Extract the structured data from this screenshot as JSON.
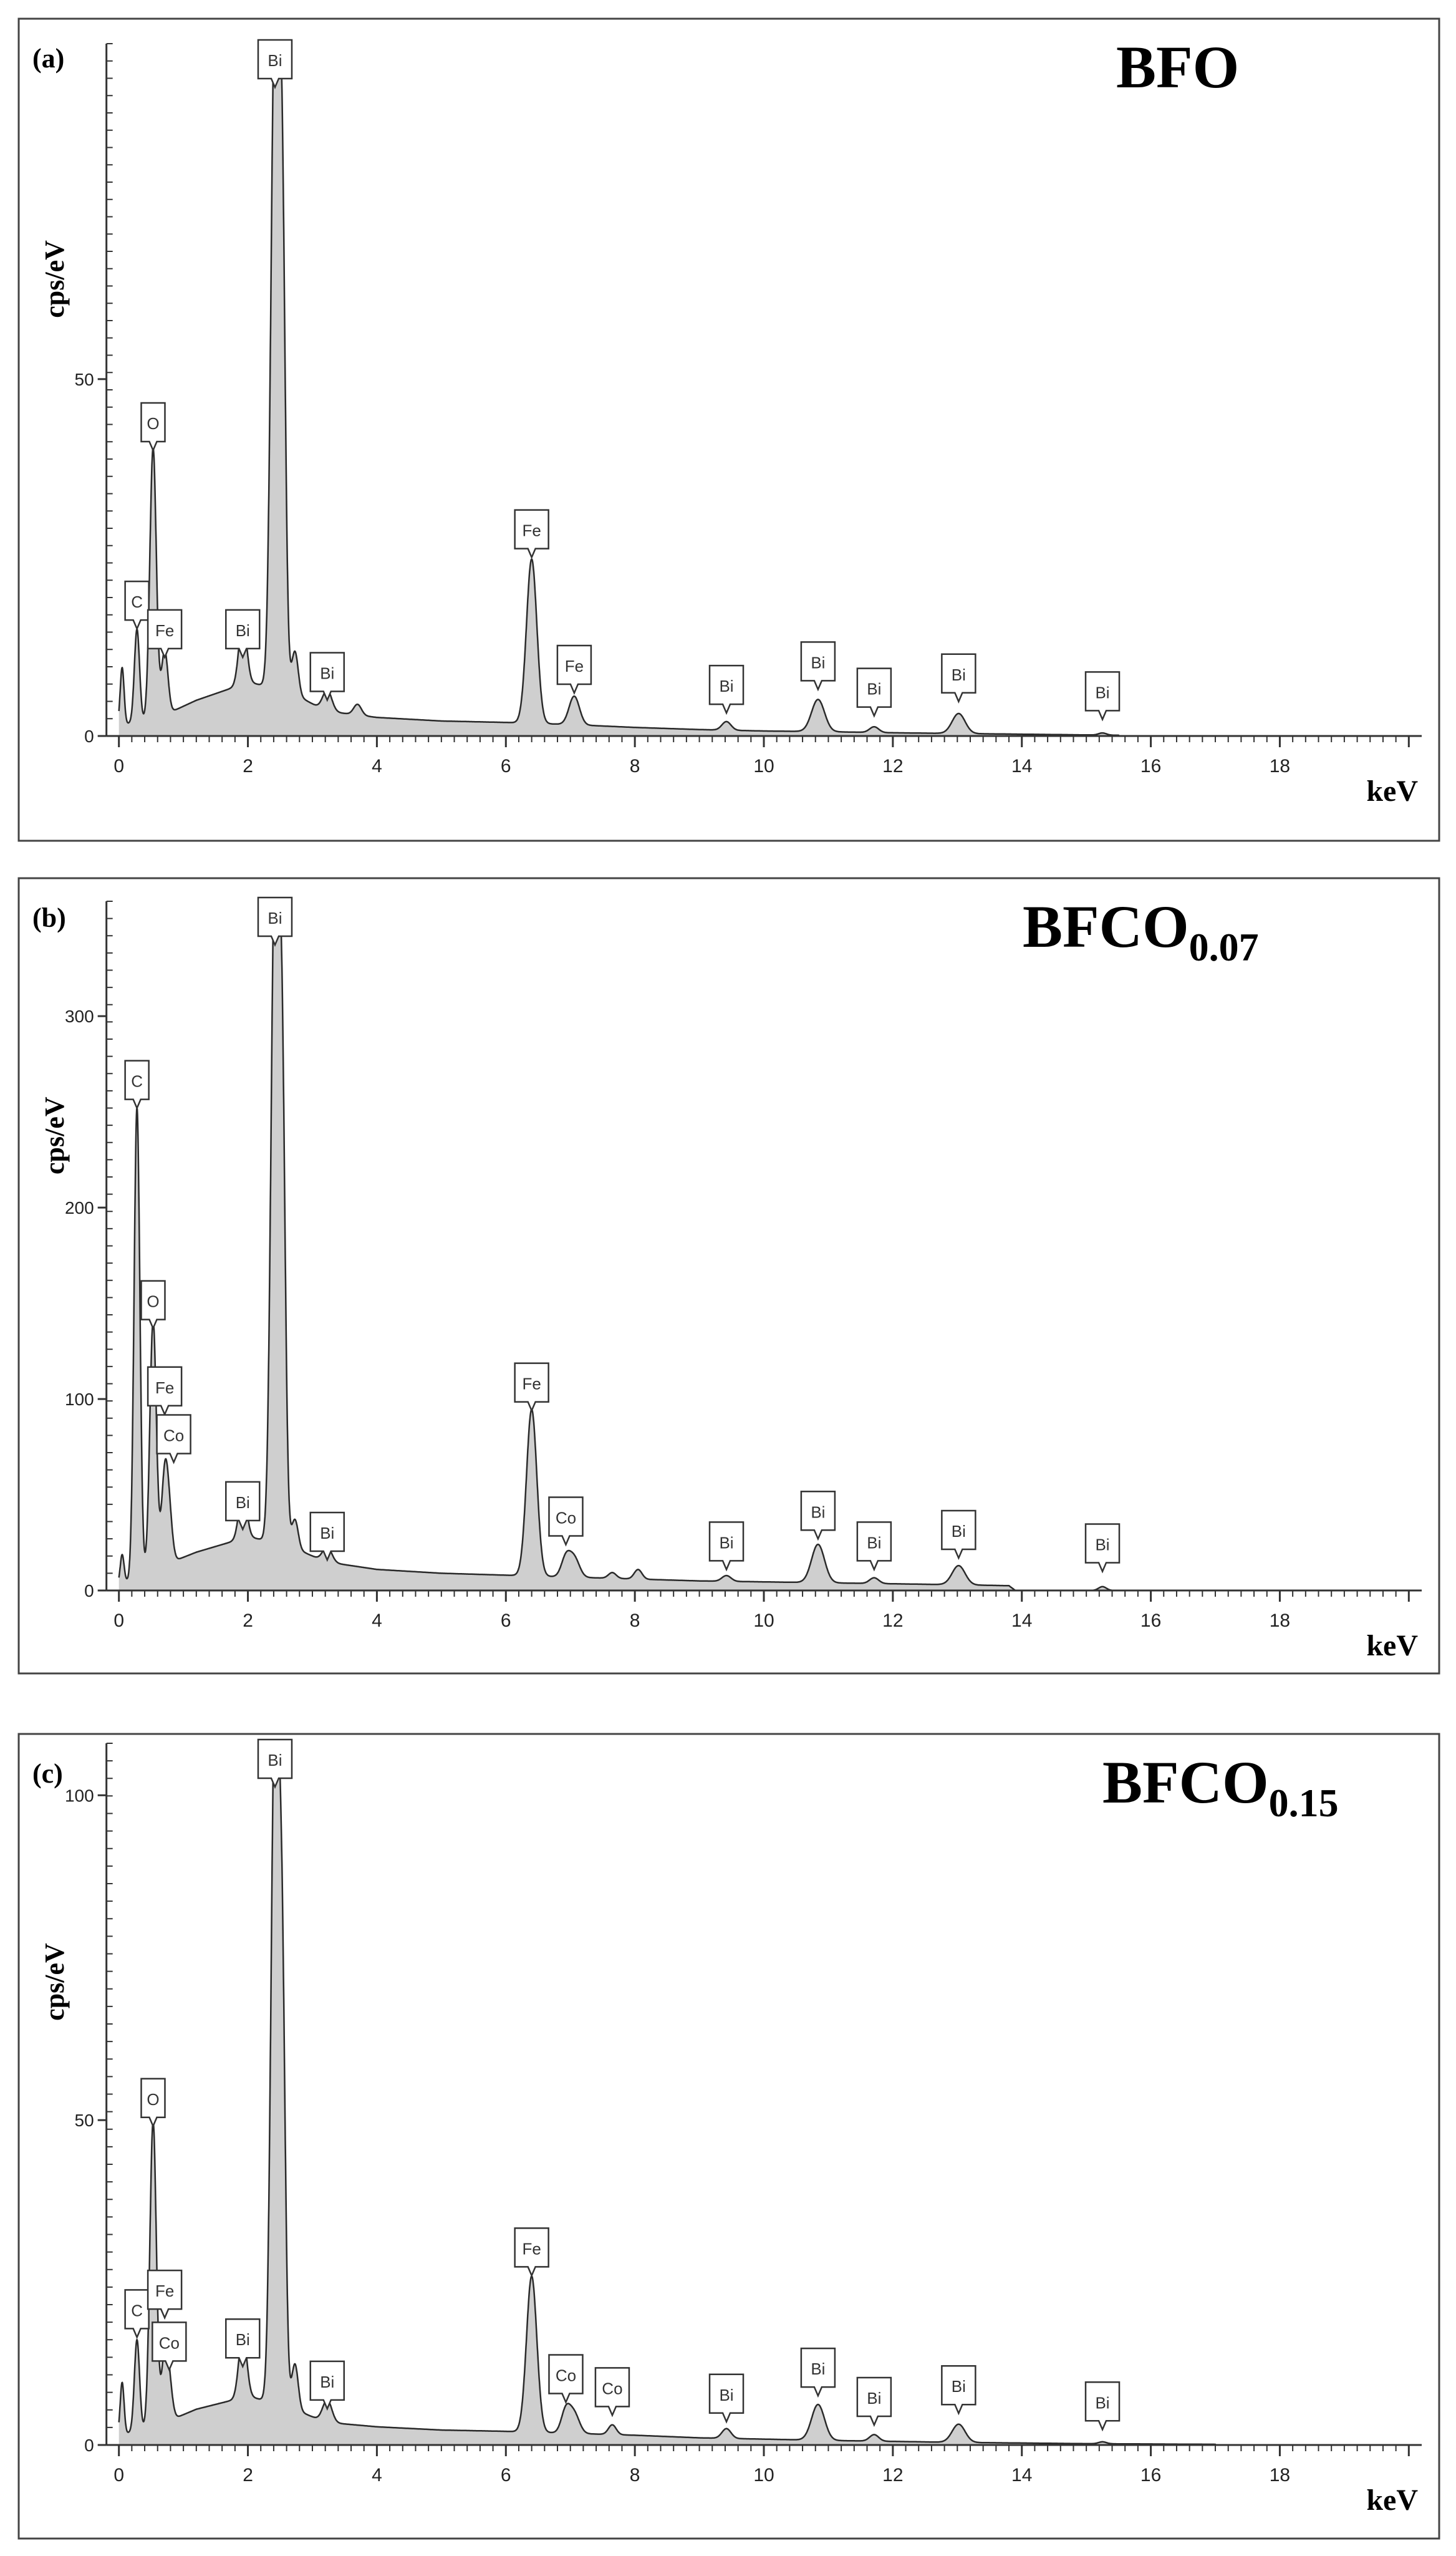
{
  "chart_data": [
    {
      "type": "area",
      "panel_label": "(a)",
      "title": "BFO",
      "title_sub": "",
      "ylabel": "cps/eV",
      "xlabel": "keV",
      "xlim": [
        -0.2,
        20.2
      ],
      "ylim": [
        0,
        97
      ],
      "x_ticks": [
        0,
        2,
        4,
        6,
        8,
        10,
        12,
        14,
        16,
        18
      ],
      "y_ticks": [
        0,
        50
      ],
      "background": [
        [
          0,
          1.5
        ],
        [
          0.6,
          2.5
        ],
        [
          1.2,
          5
        ],
        [
          2.0,
          7.5
        ],
        [
          2.6,
          6.5
        ],
        [
          3.2,
          3.5
        ],
        [
          4.0,
          2.6
        ],
        [
          5.0,
          2.1
        ],
        [
          6.0,
          1.9
        ],
        [
          7.0,
          1.6
        ],
        [
          8.0,
          1.2
        ],
        [
          9.0,
          0.9
        ],
        [
          10.0,
          0.7
        ],
        [
          11.0,
          0.6
        ],
        [
          12.0,
          0.45
        ],
        [
          13.0,
          0.35
        ],
        [
          14.0,
          0.25
        ],
        [
          15.0,
          0.15
        ],
        [
          15.5,
          0.1
        ]
      ],
      "peaks": [
        {
          "x": 0.05,
          "y": 8,
          "w": 0.03
        },
        {
          "x": 0.28,
          "y": 13,
          "w": 0.04
        },
        {
          "x": 0.53,
          "y": 38,
          "w": 0.05
        },
        {
          "x": 0.71,
          "y": 9,
          "w": 0.05
        },
        {
          "x": 1.92,
          "y": 9,
          "w": 0.06
        },
        {
          "x": 2.42,
          "y": 96,
          "w": 0.06
        },
        {
          "x": 2.53,
          "y": 65,
          "w": 0.05
        },
        {
          "x": 2.73,
          "y": 6,
          "w": 0.05
        },
        {
          "x": 3.23,
          "y": 3,
          "w": 0.07
        },
        {
          "x": 3.7,
          "y": 1.5,
          "w": 0.06
        },
        {
          "x": 6.4,
          "y": 23,
          "w": 0.08
        },
        {
          "x": 7.06,
          "y": 4,
          "w": 0.08
        },
        {
          "x": 9.42,
          "y": 1.2,
          "w": 0.07
        },
        {
          "x": 10.84,
          "y": 4.5,
          "w": 0.1
        },
        {
          "x": 11.71,
          "y": 0.8,
          "w": 0.07
        },
        {
          "x": 13.02,
          "y": 2.8,
          "w": 0.1
        },
        {
          "x": 15.25,
          "y": 0.3,
          "w": 0.06
        }
      ],
      "peak_labels": [
        {
          "text": "C",
          "x": 0.28,
          "y": 14.5
        },
        {
          "text": "O",
          "x": 0.53,
          "y": 39.5
        },
        {
          "text": "Fe",
          "x": 0.71,
          "y": 10.5
        },
        {
          "text": "Bi",
          "x": 1.92,
          "y": 10.5
        },
        {
          "text": "Bi",
          "x": 2.42,
          "y": 97.5
        },
        {
          "text": "Bi",
          "x": 3.23,
          "y": 4.5
        },
        {
          "text": "Fe",
          "x": 6.4,
          "y": 24.5
        },
        {
          "text": "Fe",
          "x": 7.06,
          "y": 5.5
        },
        {
          "text": "Bi",
          "x": 9.42,
          "y": 2.7
        },
        {
          "text": "Bi",
          "x": 10.84,
          "y": 6
        },
        {
          "text": "Bi",
          "x": 11.71,
          "y": 2.3
        },
        {
          "text": "Bi",
          "x": 13.02,
          "y": 4.3
        },
        {
          "text": "Bi",
          "x": 15.25,
          "y": 1.8
        }
      ]
    },
    {
      "type": "area",
      "panel_label": "(b)",
      "title": "BFCO",
      "title_sub": "0.07",
      "ylabel": "cps/eV",
      "xlabel": "keV",
      "xlim": [
        -0.2,
        20.2
      ],
      "ylim": [
        0,
        360
      ],
      "x_ticks": [
        0,
        2,
        4,
        6,
        8,
        10,
        12,
        14,
        16,
        18
      ],
      "y_ticks": [
        0,
        100,
        200,
        300
      ],
      "background": [
        [
          0,
          3
        ],
        [
          0.6,
          12
        ],
        [
          1.2,
          20
        ],
        [
          2.0,
          28
        ],
        [
          2.6,
          24
        ],
        [
          3.2,
          15
        ],
        [
          4.0,
          11
        ],
        [
          5.0,
          9
        ],
        [
          6.0,
          8
        ],
        [
          7.0,
          7
        ],
        [
          8.0,
          6
        ],
        [
          9.0,
          5
        ],
        [
          10.0,
          4.5
        ],
        [
          11.0,
          4
        ],
        [
          12.0,
          3.5
        ],
        [
          13.0,
          3
        ],
        [
          13.8,
          2.5
        ],
        [
          13.9,
          0
        ]
      ],
      "peaks": [
        {
          "x": 0.05,
          "y": 15,
          "w": 0.03
        },
        {
          "x": 0.28,
          "y": 245,
          "w": 0.045
        },
        {
          "x": 0.53,
          "y": 130,
          "w": 0.05
        },
        {
          "x": 0.71,
          "y": 45,
          "w": 0.05
        },
        {
          "x": 0.78,
          "y": 22,
          "w": 0.05
        },
        {
          "x": 1.92,
          "y": 25,
          "w": 0.06
        },
        {
          "x": 2.42,
          "y": 358,
          "w": 0.06
        },
        {
          "x": 2.53,
          "y": 230,
          "w": 0.05
        },
        {
          "x": 2.73,
          "y": 15,
          "w": 0.05
        },
        {
          "x": 3.23,
          "y": 8,
          "w": 0.07
        },
        {
          "x": 6.4,
          "y": 87,
          "w": 0.08
        },
        {
          "x": 6.93,
          "y": 10,
          "w": 0.07
        },
        {
          "x": 7.06,
          "y": 10,
          "w": 0.08
        },
        {
          "x": 7.65,
          "y": 3,
          "w": 0.06
        },
        {
          "x": 8.05,
          "y": 5,
          "w": 0.06
        },
        {
          "x": 9.42,
          "y": 3,
          "w": 0.07
        },
        {
          "x": 10.84,
          "y": 20,
          "w": 0.1
        },
        {
          "x": 11.71,
          "y": 3,
          "w": 0.07
        },
        {
          "x": 13.02,
          "y": 10,
          "w": 0.1
        },
        {
          "x": 15.25,
          "y": 2,
          "w": 0.06
        }
      ],
      "peak_labels": [
        {
          "text": "C",
          "x": 0.28,
          "y": 250
        },
        {
          "text": "O",
          "x": 0.53,
          "y": 135
        },
        {
          "text": "Fe",
          "x": 0.71,
          "y": 90
        },
        {
          "text": "Co",
          "x": 0.85,
          "y": 65
        },
        {
          "text": "Bi",
          "x": 1.92,
          "y": 30
        },
        {
          "text": "Bi",
          "x": 2.42,
          "y": 360
        },
        {
          "text": "Bi",
          "x": 3.23,
          "y": 14
        },
        {
          "text": "Fe",
          "x": 6.4,
          "y": 92
        },
        {
          "text": "Co",
          "x": 6.93,
          "y": 22
        },
        {
          "text": "Bi",
          "x": 9.42,
          "y": 9
        },
        {
          "text": "Bi",
          "x": 10.84,
          "y": 25
        },
        {
          "text": "Bi",
          "x": 11.71,
          "y": 9
        },
        {
          "text": "Bi",
          "x": 13.02,
          "y": 15
        },
        {
          "text": "Bi",
          "x": 15.25,
          "y": 8
        }
      ]
    },
    {
      "type": "area",
      "panel_label": "(c)",
      "title": "BFCO",
      "title_sub": "0.15",
      "ylabel": "cps/eV",
      "xlabel": "keV",
      "xlim": [
        -0.2,
        20.2
      ],
      "ylim": [
        0,
        108
      ],
      "x_ticks": [
        0,
        2,
        4,
        6,
        8,
        10,
        12,
        14,
        16,
        18
      ],
      "y_ticks": [
        0,
        50,
        100
      ],
      "background": [
        [
          0,
          1.5
        ],
        [
          0.6,
          3
        ],
        [
          1.2,
          5.5
        ],
        [
          2.0,
          7.5
        ],
        [
          2.6,
          6
        ],
        [
          3.2,
          3.5
        ],
        [
          4.0,
          2.8
        ],
        [
          5.0,
          2.3
        ],
        [
          6.0,
          2.1
        ],
        [
          7.0,
          1.8
        ],
        [
          8.0,
          1.5
        ],
        [
          9.0,
          1.1
        ],
        [
          10.0,
          0.9
        ],
        [
          11.0,
          0.7
        ],
        [
          12.0,
          0.55
        ],
        [
          13.0,
          0.4
        ],
        [
          14.0,
          0.3
        ],
        [
          15.0,
          0.2
        ],
        [
          16.0,
          0.15
        ],
        [
          17.0,
          0.1
        ]
      ],
      "peaks": [
        {
          "x": 0.05,
          "y": 8,
          "w": 0.03
        },
        {
          "x": 0.28,
          "y": 14,
          "w": 0.04
        },
        {
          "x": 0.53,
          "y": 47,
          "w": 0.05
        },
        {
          "x": 0.71,
          "y": 10,
          "w": 0.05
        },
        {
          "x": 0.78,
          "y": 5,
          "w": 0.05
        },
        {
          "x": 1.92,
          "y": 10,
          "w": 0.06
        },
        {
          "x": 2.42,
          "y": 108,
          "w": 0.06
        },
        {
          "x": 2.53,
          "y": 62,
          "w": 0.05
        },
        {
          "x": 2.73,
          "y": 7,
          "w": 0.05
        },
        {
          "x": 3.23,
          "y": 3.5,
          "w": 0.07
        },
        {
          "x": 6.4,
          "y": 24,
          "w": 0.08
        },
        {
          "x": 6.93,
          "y": 3.5,
          "w": 0.07
        },
        {
          "x": 7.06,
          "y": 3,
          "w": 0.08
        },
        {
          "x": 7.65,
          "y": 1.5,
          "w": 0.06
        },
        {
          "x": 9.42,
          "y": 1.5,
          "w": 0.07
        },
        {
          "x": 10.84,
          "y": 5.5,
          "w": 0.1
        },
        {
          "x": 11.71,
          "y": 1,
          "w": 0.07
        },
        {
          "x": 13.02,
          "y": 2.8,
          "w": 0.1
        },
        {
          "x": 15.25,
          "y": 0.3,
          "w": 0.06
        }
      ],
      "peak_labels": [
        {
          "text": "C",
          "x": 0.28,
          "y": 16
        },
        {
          "text": "O",
          "x": 0.53,
          "y": 48.5
        },
        {
          "text": "Fe",
          "x": 0.71,
          "y": 19
        },
        {
          "text": "Co",
          "x": 0.78,
          "y": 11
        },
        {
          "text": "Bi",
          "x": 1.92,
          "y": 11.5
        },
        {
          "text": "Bi",
          "x": 2.42,
          "y": 109
        },
        {
          "text": "Bi",
          "x": 3.23,
          "y": 5
        },
        {
          "text": "Fe",
          "x": 6.4,
          "y": 25.5
        },
        {
          "text": "Co",
          "x": 6.93,
          "y": 6
        },
        {
          "text": "Co",
          "x": 7.65,
          "y": 4
        },
        {
          "text": "Bi",
          "x": 9.42,
          "y": 3
        },
        {
          "text": "Bi",
          "x": 10.84,
          "y": 7
        },
        {
          "text": "Bi",
          "x": 11.71,
          "y": 2.5
        },
        {
          "text": "Bi",
          "x": 13.02,
          "y": 4.3
        },
        {
          "text": "Bi",
          "x": 15.25,
          "y": 1.8
        }
      ]
    }
  ]
}
